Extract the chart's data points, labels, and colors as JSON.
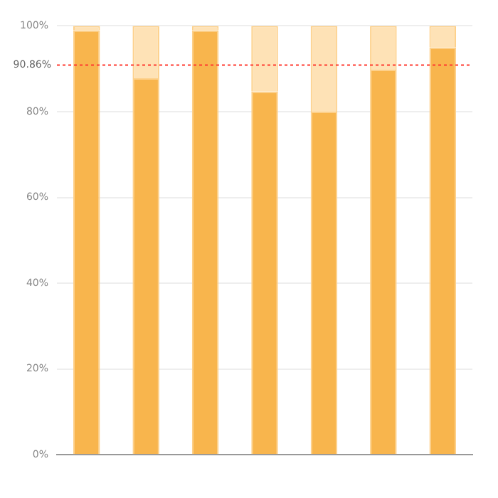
{
  "chart_data": {
    "type": "bar",
    "stacked": true,
    "categories": [
      null,
      null,
      null,
      null,
      null,
      null,
      null
    ],
    "series": [
      {
        "color": "#f8b54d",
        "values": [
          99,
          87.8,
          99,
          84.7,
          80,
          89.8,
          95
        ]
      },
      {
        "color": "#fee2b6",
        "values": [
          1,
          12.2,
          1,
          15.3,
          20,
          10.2,
          5
        ]
      }
    ],
    "ylim": [
      0,
      100
    ],
    "yticks": [
      {
        "value": 0,
        "label": "0%"
      },
      {
        "value": 20,
        "label": "20%"
      },
      {
        "value": 40,
        "label": "40%"
      },
      {
        "value": 60,
        "label": "60%"
      },
      {
        "value": 80,
        "label": "80%"
      },
      {
        "value": 100,
        "label": "100%"
      }
    ],
    "grid": "y",
    "legend": false,
    "ref_lines": [
      {
        "axis": "y",
        "value": 90.86,
        "label": "90.86%",
        "color": "#ff3b30",
        "line_style": "dotted"
      }
    ]
  }
}
